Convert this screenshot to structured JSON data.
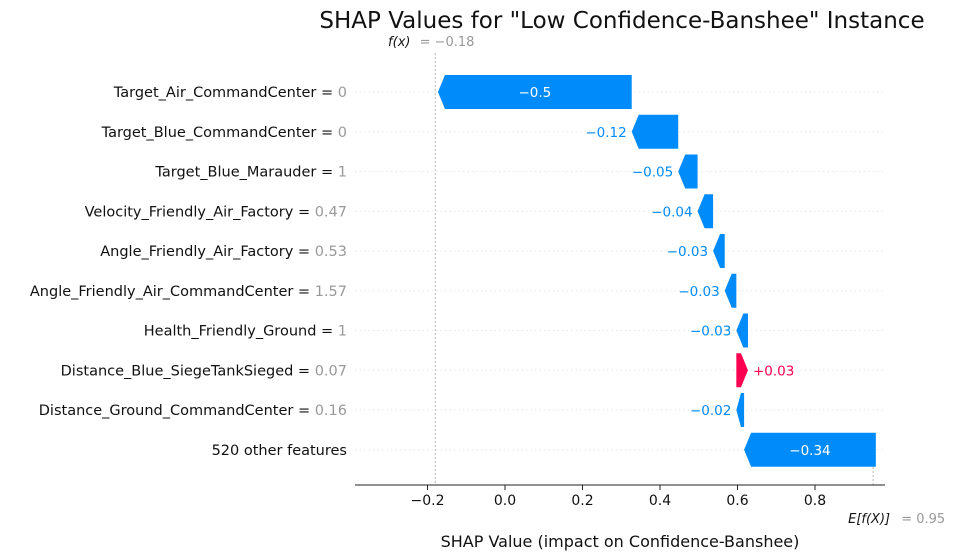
{
  "chart_data": {
    "type": "waterfall",
    "title": "SHAP Values for \"Low Confidence-Banshee\" Instance",
    "xlabel": "SHAP Value (impact on Confidence-Banshee)",
    "xlim": [
      -0.38,
      0.96
    ],
    "xticks": [
      -0.2,
      0.0,
      0.2,
      0.4,
      0.6,
      0.8
    ],
    "xtick_labels": [
      "−0.2",
      "0.0",
      "0.2",
      "0.4",
      "0.6",
      "0.8"
    ],
    "fx_label": "f(x)",
    "fx_value": -0.18,
    "fx_text": "= −0.18",
    "efx_label": "E[f(X)]",
    "efx_value": 0.95,
    "efx_text": "= 0.95",
    "colors": {
      "negative": "#008bfb",
      "positive": "#ff0051"
    },
    "features": [
      {
        "name": "Target_Air_CommandCenter",
        "value_text": "0",
        "start": 0.327,
        "end": -0.173,
        "label": "−0.5"
      },
      {
        "name": "Target_Blue_CommandCenter",
        "value_text": "0",
        "start": 0.447,
        "end": 0.327,
        "label": "−0.12"
      },
      {
        "name": "Target_Blue_Marauder",
        "value_text": "1",
        "start": 0.497,
        "end": 0.447,
        "label": "−0.05"
      },
      {
        "name": "Velocity_Friendly_Air_Factory",
        "value_text": "0.47",
        "start": 0.537,
        "end": 0.497,
        "label": "−0.04"
      },
      {
        "name": "Angle_Friendly_Air_Factory",
        "value_text": "0.53",
        "start": 0.567,
        "end": 0.537,
        "label": "−0.03"
      },
      {
        "name": "Angle_Friendly_Air_CommandCenter",
        "value_text": "1.57",
        "start": 0.597,
        "end": 0.567,
        "label": "−0.03"
      },
      {
        "name": "Health_Friendly_Ground",
        "value_text": "1",
        "start": 0.627,
        "end": 0.597,
        "label": "−0.03"
      },
      {
        "name": "Distance_Blue_SiegeTankSieged",
        "value_text": "0.07",
        "start": 0.597,
        "end": 0.627,
        "label": "+0.03"
      },
      {
        "name": "Distance_Ground_CommandCenter",
        "value_text": "0.16",
        "start": 0.617,
        "end": 0.597,
        "label": "−0.02"
      },
      {
        "name": "520 other features",
        "value_text": "",
        "start": 0.957,
        "end": 0.617,
        "label": "−0.34"
      }
    ]
  }
}
